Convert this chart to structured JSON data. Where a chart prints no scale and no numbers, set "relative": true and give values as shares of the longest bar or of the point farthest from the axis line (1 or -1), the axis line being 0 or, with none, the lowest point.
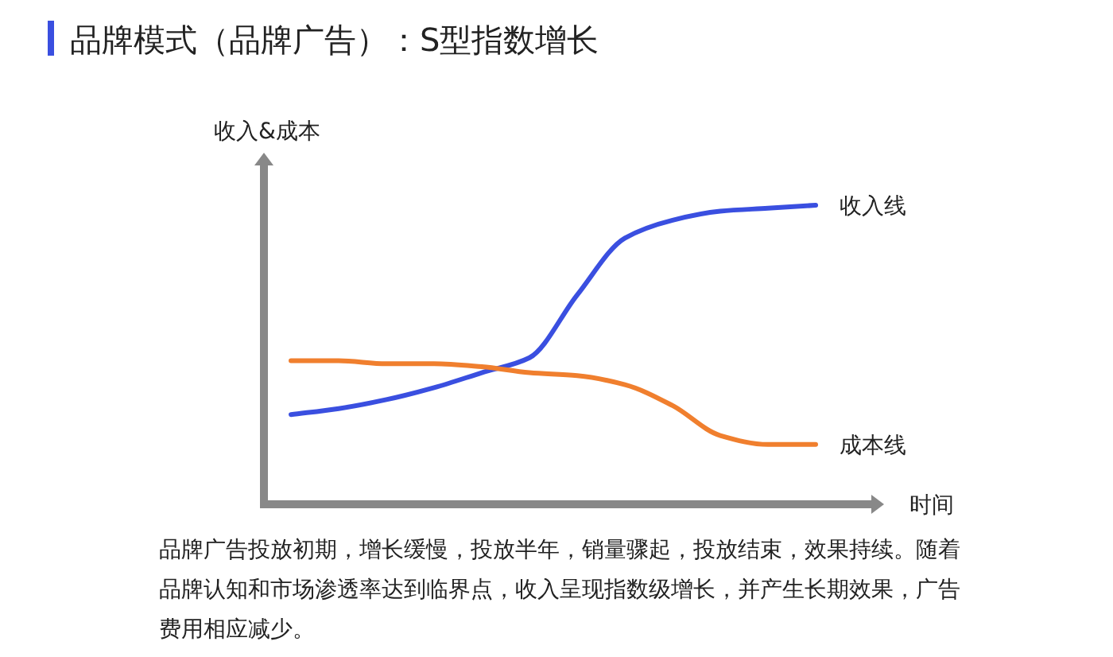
{
  "chart_data": {
    "type": "line",
    "title": "品牌模式（品牌广告）：S型指数增长",
    "xlabel": "时间",
    "ylabel": "收入&成本",
    "relative": true,
    "categories": [
      null,
      null,
      null,
      null,
      null,
      null,
      null,
      null,
      null,
      null,
      null,
      null
    ],
    "series": [
      {
        "name": "收入线",
        "color": "#3a4fe0",
        "values": [
          0.3,
          0.32,
          0.35,
          0.39,
          0.44,
          0.49,
          0.7,
          0.89,
          0.95,
          0.98,
          0.99,
          1
        ]
      },
      {
        "name": "成本线",
        "color": "#f07f2e",
        "values": [
          0.48,
          0.48,
          0.47,
          0.47,
          0.46,
          0.44,
          0.43,
          0.4,
          0.33,
          0.23,
          0.2,
          0.2
        ]
      }
    ],
    "annotations": [
      "品牌广告投放初期，增长缓慢，投放半年，销量骤起，投放结束，效果持续。随着品牌认知和市场渗透率达到临界点，收入呈现指数级增长，并产生长期效果，广告费用相应减少。"
    ]
  }
}
